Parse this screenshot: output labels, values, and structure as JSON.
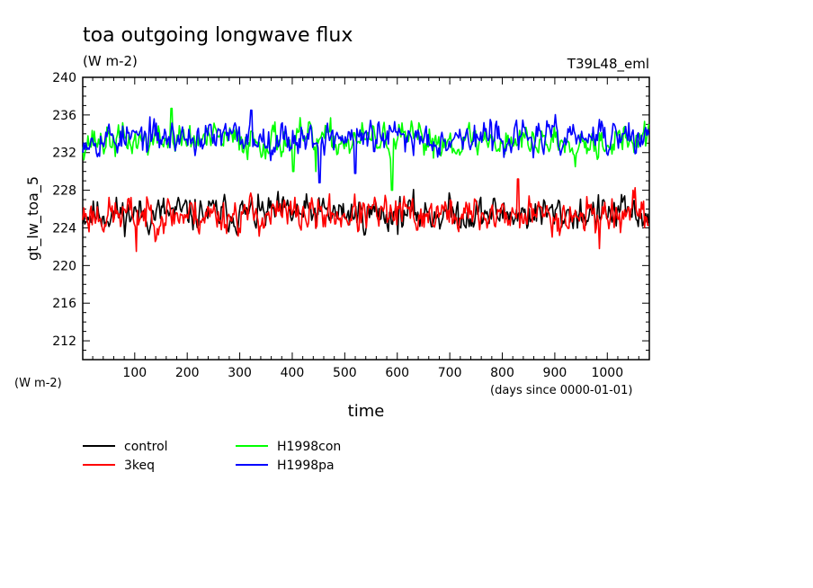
{
  "chart_data": {
    "type": "line",
    "title": "toa outgoing longwave flux",
    "units": "(W m-2)",
    "experiment": "T39L48_eml",
    "ylabel": "gt_lw_toa_5",
    "yunits": "(W m-2)",
    "xlabel": "time",
    "xunits": "(days since 0000-01-01)",
    "xlim": [
      1,
      1080
    ],
    "ylim": [
      210,
      240
    ],
    "xticks": [
      100,
      200,
      300,
      400,
      500,
      600,
      700,
      800,
      900,
      1000
    ],
    "yticks": [
      212,
      216,
      220,
      224,
      228,
      232,
      236,
      240
    ],
    "grid": false,
    "legend_position": "below",
    "series": [
      {
        "name": "control",
        "color": "#000000",
        "mean": 225.5,
        "amp": 1.5,
        "min": 221.5,
        "max": 228.3,
        "seed": 11,
        "spikes": []
      },
      {
        "name": "3keq",
        "color": "#ff0000",
        "mean": 225.4,
        "amp": 1.6,
        "min": 221.5,
        "max": 229.2,
        "seed": 23,
        "spikes": [
          [
            830,
            229.2
          ],
          [
            103,
            221.5
          ],
          [
            985,
            221.8
          ]
        ]
      },
      {
        "name": "H1998con",
        "color": "#00ff00",
        "mean": 233.3,
        "amp": 1.4,
        "min": 228.0,
        "max": 236.7,
        "seed": 37,
        "spikes": [
          [
            590,
            228.0
          ],
          [
            445,
            230.0
          ],
          [
            402,
            230.0
          ],
          [
            170,
            236.7
          ]
        ]
      },
      {
        "name": "H1998pa",
        "color": "#0000ff",
        "mean": 233.6,
        "amp": 1.4,
        "min": 228.8,
        "max": 236.5,
        "seed": 53,
        "spikes": [
          [
            452,
            228.8
          ],
          [
            322,
            236.5
          ],
          [
            520,
            229.8
          ]
        ]
      }
    ]
  }
}
